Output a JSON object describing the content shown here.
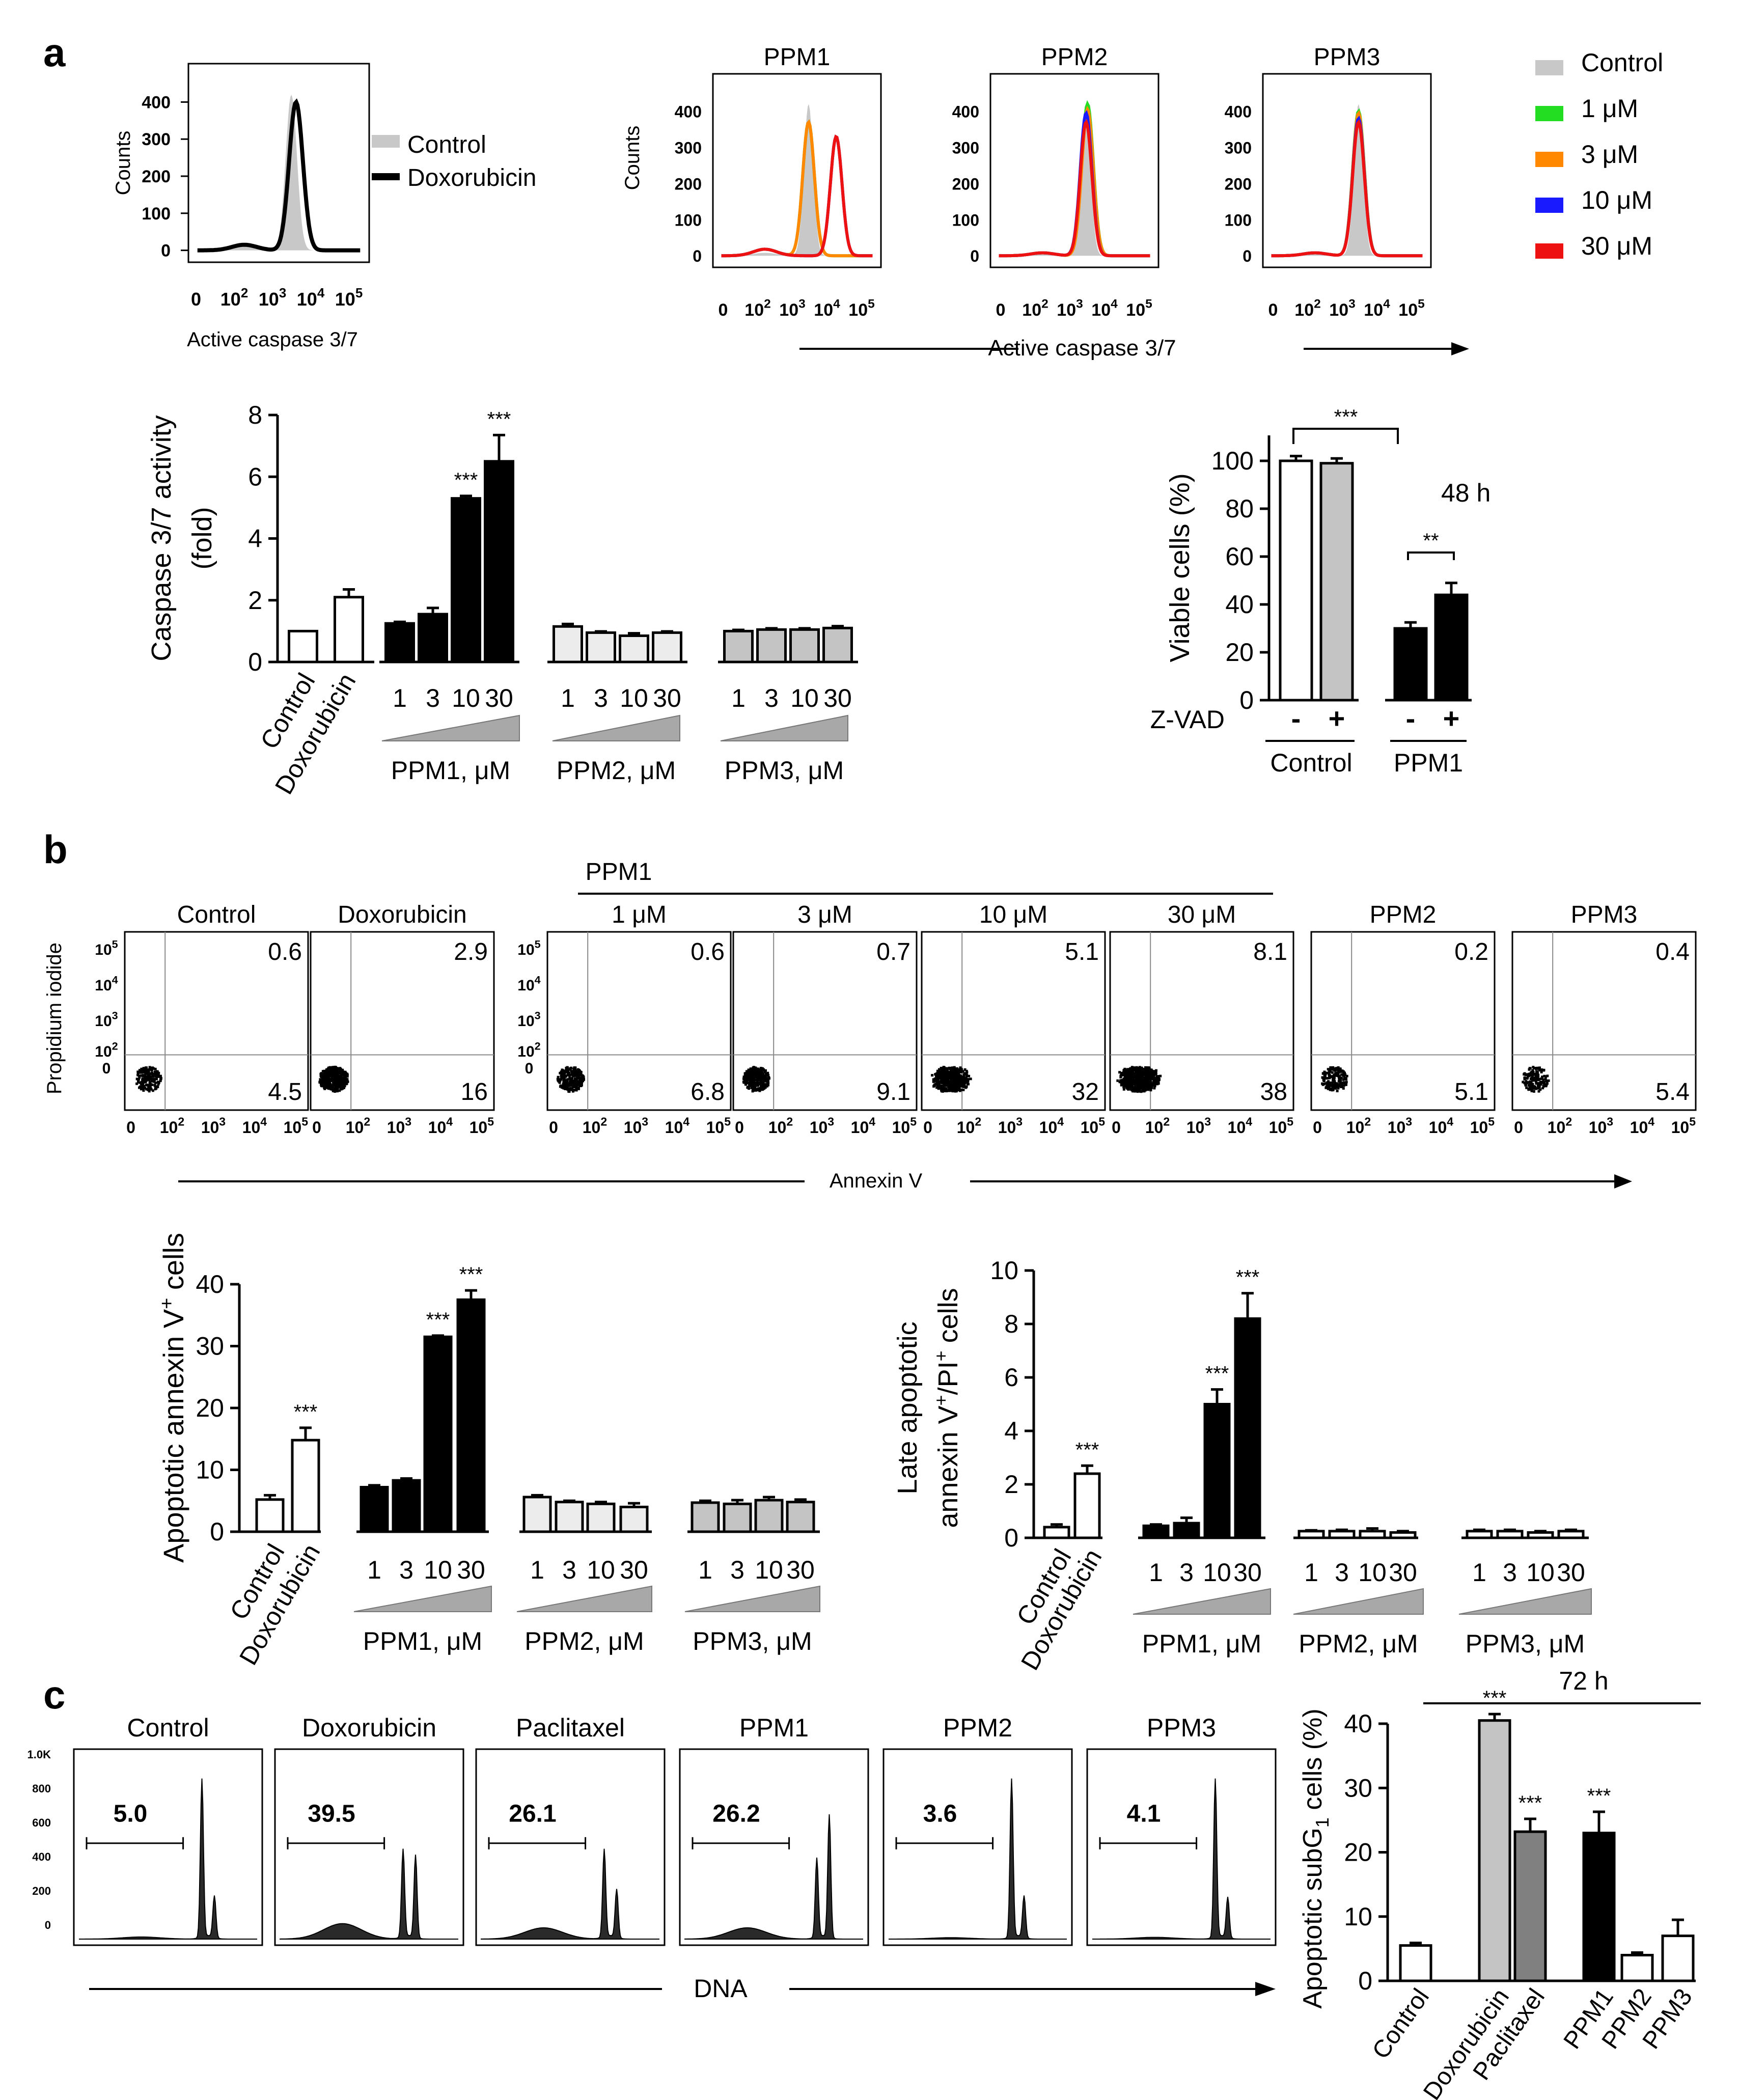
{
  "figure": {
    "panel_labels": [
      "a",
      "b",
      "c"
    ]
  },
  "colors": {
    "control": "#c8c8c8",
    "c1": "#22dd22",
    "c3": "#ff8800",
    "c10": "#1a1aff",
    "c30": "#ee1111",
    "black": "#000000",
    "gray_light": "#ececec",
    "gray_mid": "#c4c4c4",
    "gray_dark": "#808080"
  },
  "chart_data": [
    {
      "id": "a_hist_doxo",
      "type": "histogram",
      "ylabel": "Counts",
      "xlabel": "Active caspase 3/7",
      "yticks": [
        "400",
        "300",
        "200",
        "100",
        "0"
      ],
      "xticks": [
        "0",
        "10",
        "10",
        "10",
        "10"
      ],
      "xtick_exponents": [
        "",
        "2",
        "3",
        "4",
        "5"
      ],
      "legend": [
        "Control",
        "Doxorubicin"
      ],
      "series": [
        {
          "name": "Control",
          "style": "filled-gray",
          "peak_log10": 3.0,
          "peak_count": 420
        },
        {
          "name": "Doxorubicin",
          "style": "black-line",
          "peak_log10": 3.15,
          "peak_count": 400
        }
      ]
    },
    {
      "id": "a_hist_ppm",
      "type": "histogram-panels",
      "panels": [
        "PPM1",
        "PPM2",
        "PPM3"
      ],
      "ylabel": "Counts",
      "xlabel": "Active caspase 3/7",
      "yticks": [
        "400",
        "300",
        "200",
        "100",
        "0"
      ],
      "xticks": [
        "0",
        "10",
        "10",
        "10",
        "10"
      ],
      "xtick_exponents": [
        "",
        "2",
        "3",
        "4",
        "5"
      ],
      "legend": [
        "Control",
        "1 μM",
        "3 μM",
        "10 μM",
        "30 μM"
      ],
      "series_peaks": {
        "PPM1": [
          {
            "name": "Control",
            "log": 3.0,
            "count": 420
          },
          {
            "name": "1 μM",
            "log": 3.0,
            "count": 370
          },
          {
            "name": "3 μM",
            "log": 3.0,
            "count": 370
          },
          {
            "name": "10 μM",
            "log": 3.95,
            "count": 330
          },
          {
            "name": "30 μM",
            "log": 3.95,
            "count": 330
          }
        ],
        "PPM2": [
          {
            "name": "Control",
            "log": 3.0,
            "count": 400
          },
          {
            "name": "1 μM",
            "log": 3.05,
            "count": 420
          },
          {
            "name": "3 μM",
            "log": 3.05,
            "count": 405
          },
          {
            "name": "10 μM",
            "log": 3.0,
            "count": 395
          },
          {
            "name": "30 μM",
            "log": 3.0,
            "count": 370
          }
        ],
        "PPM3": [
          {
            "name": "Control",
            "log": 3.0,
            "count": 420
          },
          {
            "name": "1 μM",
            "log": 3.0,
            "count": 400
          },
          {
            "name": "3 μM",
            "log": 3.0,
            "count": 395
          },
          {
            "name": "10 μM",
            "log": 3.0,
            "count": 380
          },
          {
            "name": "30 μM",
            "log": 3.0,
            "count": 370
          }
        ]
      }
    },
    {
      "id": "a_caspase_bar",
      "type": "bar",
      "ylabel_line1": "Caspase 3/7 activity",
      "ylabel_line2": "(fold)",
      "ylim": [
        0,
        8
      ],
      "yticks": [
        0,
        2,
        4,
        6,
        8
      ],
      "categories": [
        "Control",
        "Doxorubicin",
        "1",
        "3",
        "10",
        "30",
        "1",
        "3",
        "10",
        "30",
        "1",
        "3",
        "10",
        "30"
      ],
      "values": [
        1.0,
        2.1,
        1.25,
        1.55,
        5.3,
        6.5,
        1.15,
        0.95,
        0.85,
        0.95,
        1.0,
        1.05,
        1.05,
        1.1
      ],
      "errors": [
        0,
        0.25,
        0.05,
        0.2,
        0.08,
        0.85,
        0.08,
        0.04,
        0.08,
        0.04,
        0.04,
        0.04,
        0.04,
        0.06
      ],
      "significance": [
        "",
        "",
        "",
        "",
        "***",
        "***",
        "",
        "",
        "",
        "",
        "",
        "",
        "",
        ""
      ],
      "group_labels": [
        "PPM1, μM",
        "PPM2, μM",
        "PPM3, μM"
      ]
    },
    {
      "id": "a_viable_bar",
      "type": "bar",
      "ylabel": "Viable cells (%)",
      "ylim": [
        0,
        100
      ],
      "yticks": [
        0,
        20,
        40,
        60,
        80,
        100
      ],
      "annotation": "48 h",
      "row_label": "Z-VAD",
      "categories": [
        "-",
        "+",
        "-",
        "+"
      ],
      "values": [
        100,
        99,
        30,
        44
      ],
      "errors": [
        2,
        2,
        2.5,
        5
      ],
      "group_labels": [
        "Control",
        "PPM1"
      ],
      "brackets": [
        {
          "between": "Control vs PPM1",
          "label": "***"
        },
        {
          "between": "PPM1 - vs +",
          "label": "**"
        }
      ]
    },
    {
      "id": "b_scatter",
      "type": "scatter",
      "ylabel": "Propidium iodide",
      "xlabel": "Annexin V",
      "group_header": "PPM1",
      "panels": [
        {
          "title": "Control",
          "ur": "0.6",
          "lr": "4.5"
        },
        {
          "title": "Doxorubicin",
          "ur": "2.9",
          "lr": "16"
        },
        {
          "title": "1 μM",
          "ur": "0.6",
          "lr": "6.8"
        },
        {
          "title": "3 μM",
          "ur": "0.7",
          "lr": "9.1"
        },
        {
          "title": "10 μM",
          "ur": "5.1",
          "lr": "32"
        },
        {
          "title": "30 μM",
          "ur": "8.1",
          "lr": "38"
        },
        {
          "title": "PPM2",
          "ur": "0.2",
          "lr": "5.1"
        },
        {
          "title": "PPM3",
          "ur": "0.4",
          "lr": "5.4"
        }
      ],
      "axis_ticks": [
        "0",
        "10",
        "10",
        "10",
        "10"
      ],
      "axis_exponents": [
        "",
        "2",
        "3",
        "4",
        "5"
      ]
    },
    {
      "id": "b_annexin_bar",
      "type": "bar",
      "ylabel_main": "Apoptotic annexin V",
      "ylabel_sup": "+",
      "ylabel_tail": " cells",
      "ylim": [
        0,
        40
      ],
      "yticks": [
        0,
        10,
        20,
        30,
        40
      ],
      "categories": [
        "Control",
        "Doxorubicin",
        "1",
        "3",
        "10",
        "30",
        "1",
        "3",
        "10",
        "30",
        "1",
        "3",
        "10",
        "30"
      ],
      "values": [
        5.2,
        14.8,
        7.2,
        8.3,
        31.5,
        37.5,
        5.6,
        4.8,
        4.5,
        4.0,
        4.7,
        4.5,
        5.1,
        4.8
      ],
      "errors": [
        0.7,
        2.0,
        0.3,
        0.3,
        0.2,
        1.5,
        0.3,
        0.2,
        0.3,
        0.6,
        0.3,
        0.6,
        0.5,
        0.4
      ],
      "significance": [
        "",
        "***",
        "",
        "",
        "***",
        "***",
        "",
        "",
        "",
        "",
        "",
        "",
        "",
        ""
      ],
      "group_labels": [
        "PPM1, μM",
        "PPM2, μM",
        "PPM3, μM"
      ]
    },
    {
      "id": "b_late_bar",
      "type": "bar",
      "ylabel_line1": "Late apoptotic",
      "ylabel_line2_main": "annexin V",
      "ylabel_line2_sup1": "+",
      "ylabel_line2_mid": "/PI",
      "ylabel_line2_sup2": "+",
      "ylabel_line2_tail": " cells",
      "ylim": [
        0,
        10
      ],
      "yticks": [
        0,
        2,
        4,
        6,
        8,
        10
      ],
      "categories": [
        "Control",
        "Doxorubicin",
        "1",
        "3",
        "10",
        "30",
        "1",
        "3",
        "10",
        "30",
        "1",
        "3",
        "10",
        "30"
      ],
      "values": [
        0.4,
        2.4,
        0.45,
        0.55,
        5.0,
        8.2,
        0.25,
        0.25,
        0.25,
        0.2,
        0.25,
        0.25,
        0.2,
        0.25
      ],
      "errors": [
        0.1,
        0.3,
        0.05,
        0.2,
        0.55,
        0.95,
        0.03,
        0.05,
        0.1,
        0.05,
        0.05,
        0.05,
        0.05,
        0.05
      ],
      "significance": [
        "",
        "***",
        "",
        "",
        "***",
        "***",
        "",
        "",
        "",
        "",
        "",
        "",
        "",
        ""
      ],
      "group_labels": [
        "PPM1, μM",
        "PPM2, μM",
        "PPM3, μM"
      ]
    },
    {
      "id": "c_dna_hist",
      "type": "histogram-panels",
      "panels": [
        {
          "title": "Control",
          "value": "5.0"
        },
        {
          "title": "Doxorubicin",
          "value": "39.5"
        },
        {
          "title": "Paclitaxel",
          "value": "26.1"
        },
        {
          "title": "PPM1",
          "value": "26.2"
        },
        {
          "title": "PPM2",
          "value": "3.6"
        },
        {
          "title": "PPM3",
          "value": "4.1"
        }
      ],
      "yticks": [
        "1.0K",
        "800",
        "600",
        "400",
        "200",
        "0"
      ],
      "xlabel": "DNA"
    },
    {
      "id": "c_subg1_bar",
      "type": "bar",
      "ylabel_main": "Apoptotic subG",
      "ylabel_sub": "1",
      "ylabel_tail": " cells (%)",
      "annotation": "72 h",
      "ylim": [
        0,
        40
      ],
      "yticks": [
        0,
        10,
        20,
        30,
        40
      ],
      "categories": [
        "Control",
        "Doxorubicin",
        "Paclitaxel",
        "PPM1",
        "PPM2",
        "PPM3"
      ],
      "values": [
        5.5,
        40.5,
        23.2,
        23.0,
        4.0,
        7.0
      ],
      "errors": [
        0.4,
        1.0,
        2.0,
        3.3,
        0.4,
        2.5
      ],
      "significance": [
        "",
        "***",
        "***",
        "***",
        "",
        ""
      ]
    }
  ]
}
